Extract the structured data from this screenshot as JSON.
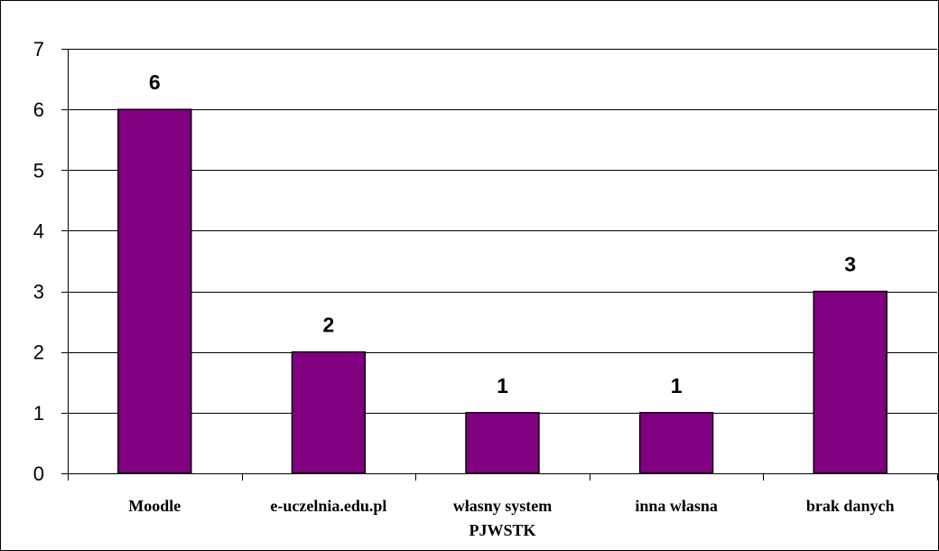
{
  "chart_data": {
    "type": "bar",
    "categories": [
      [
        "Moodle"
      ],
      [
        "e-uczelnia.edu.pl"
      ],
      [
        "własny system",
        "PJWSTK"
      ],
      [
        "inna własna"
      ],
      [
        "brak danych"
      ]
    ],
    "values": [
      6,
      2,
      1,
      1,
      3
    ],
    "data_labels": [
      "6",
      "2",
      "1",
      "1",
      "3"
    ],
    "ylim": [
      0,
      7
    ],
    "yticks": [
      0,
      1,
      2,
      3,
      4,
      5,
      6,
      7
    ],
    "grid": true,
    "legend": "none",
    "title": "",
    "xlabel": "",
    "ylabel": "",
    "colors": {
      "bar": "#800080",
      "bar_border": "#000000",
      "grid": "#000000",
      "background": "#ffffff"
    }
  }
}
